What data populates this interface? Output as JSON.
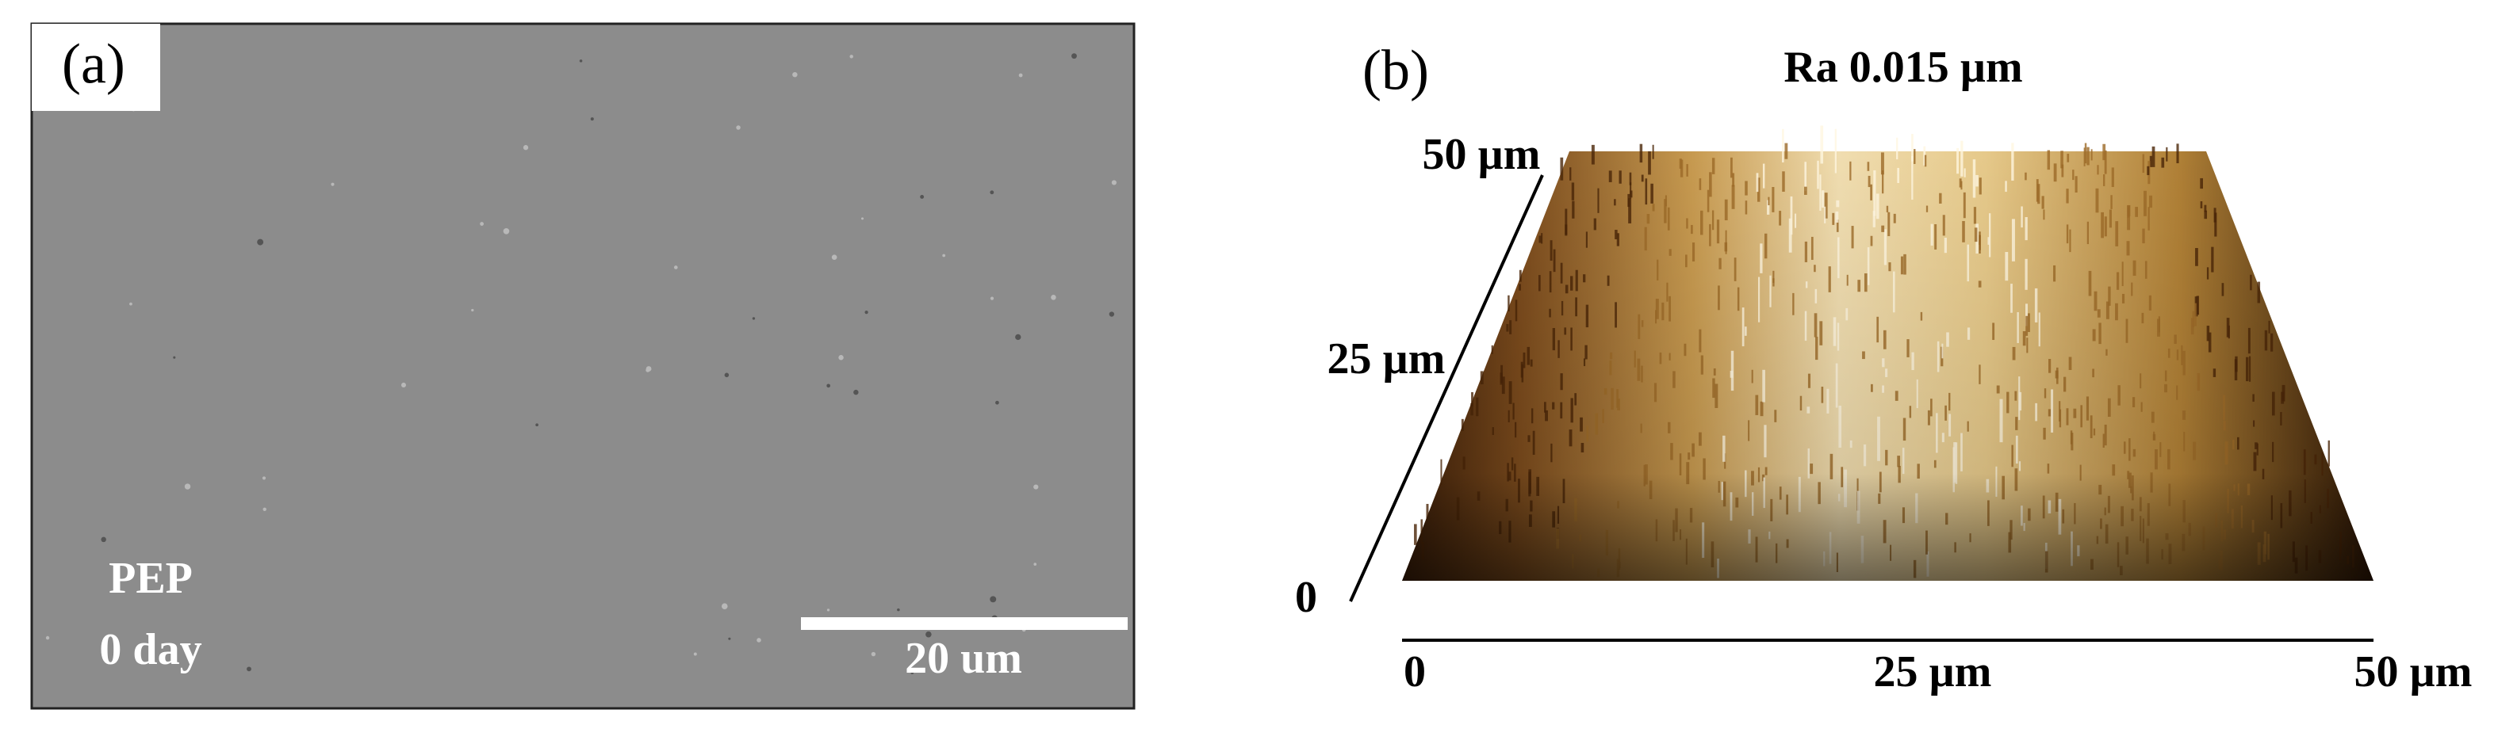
{
  "panels": [
    {
      "label": "(a)",
      "sample": "PEP",
      "time": "0 day",
      "scale_bar": "20 um"
    },
    {
      "label": "(b)",
      "title": "Ra 0.015 µm",
      "axis_depth": [
        "0",
        "25 µm",
        "50 µm"
      ],
      "axis_x": [
        "0",
        "25 µm",
        "50 µm"
      ]
    }
  ]
}
